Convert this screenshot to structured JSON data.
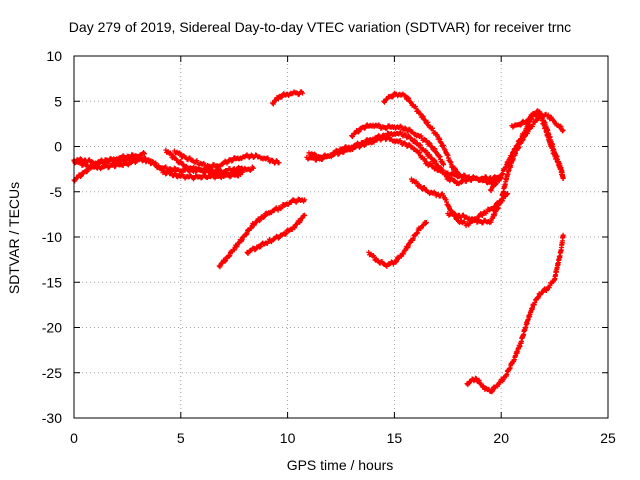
{
  "chart_data": {
    "type": "scatter",
    "title": "Day 279 of 2019, Sidereal Day-to-day VTEC variation (SDTVAR) for receiver trnc",
    "xlabel": "GPS time / hours",
    "ylabel": "SDTVAR / TECUs",
    "xlim": [
      0,
      25
    ],
    "ylim": [
      -30,
      10
    ],
    "xticks": [
      0,
      5,
      10,
      15,
      20,
      25
    ],
    "yticks": [
      -30,
      -25,
      -20,
      -15,
      -10,
      -5,
      0,
      5,
      10
    ],
    "grid": true,
    "marker": "+",
    "color": "#ff0000",
    "series": [
      {
        "name": "s1",
        "points": [
          [
            0,
            -1.5
          ],
          [
            0.5,
            -1.5
          ],
          [
            1,
            -1.8
          ],
          [
            1.5,
            -1.5
          ],
          [
            2,
            -1.7
          ],
          [
            2.5,
            -1.4
          ],
          [
            3,
            -1.3
          ],
          [
            3.5,
            -1.6
          ],
          [
            4,
            -2.3
          ],
          [
            4.5,
            -2.5
          ],
          [
            5,
            -2.6
          ],
          [
            5.5,
            -2.6
          ],
          [
            6,
            -2.5
          ],
          [
            6.5,
            -2.7
          ],
          [
            7,
            -2.7
          ],
          [
            7.5,
            -2.5
          ],
          [
            8,
            -2.4
          ]
        ]
      },
      {
        "name": "s2",
        "points": [
          [
            0,
            -3.7
          ],
          [
            0.5,
            -2.8
          ],
          [
            1,
            -2.0
          ],
          [
            1.5,
            -1.6
          ],
          [
            2,
            -1.3
          ],
          [
            2.5,
            -1.1
          ],
          [
            3,
            -1.0
          ],
          [
            3.3,
            -0.8
          ]
        ]
      },
      {
        "name": "s3",
        "points": [
          [
            0,
            -1.6
          ],
          [
            0.6,
            -2.1
          ],
          [
            1.2,
            -2.3
          ],
          [
            1.8,
            -2.1
          ],
          [
            2.5,
            -1.9
          ],
          [
            3.1,
            -1.4
          ],
          [
            3.6,
            -1.5
          ],
          [
            4.2,
            -2.8
          ],
          [
            4.8,
            -3.2
          ],
          [
            5.5,
            -3.4
          ],
          [
            6.2,
            -3.3
          ],
          [
            6.8,
            -3.3
          ],
          [
            7.4,
            -3.0
          ],
          [
            7.8,
            -2.7
          ],
          [
            8.4,
            -2.4
          ]
        ]
      },
      {
        "name": "s4",
        "points": [
          [
            4.7,
            -0.5
          ],
          [
            5.2,
            -1.2
          ],
          [
            5.8,
            -1.8
          ],
          [
            6.3,
            -2.2
          ],
          [
            6.8,
            -2.1
          ],
          [
            7.3,
            -1.5
          ],
          [
            7.8,
            -1.2
          ],
          [
            8.3,
            -1.0
          ],
          [
            8.8,
            -1.2
          ],
          [
            9.3,
            -1.6
          ],
          [
            9.6,
            -1.8
          ]
        ]
      },
      {
        "name": "s5",
        "points": [
          [
            4.3,
            -0.4
          ],
          [
            4.8,
            -1.5
          ],
          [
            5.3,
            -2.3
          ],
          [
            6.0,
            -2.7
          ],
          [
            6.6,
            -3.0
          ],
          [
            7.2,
            -3.2
          ],
          [
            7.8,
            -3.1
          ]
        ]
      },
      {
        "name": "s6",
        "points": [
          [
            6.8,
            -13.2
          ],
          [
            7.2,
            -12.2
          ],
          [
            7.6,
            -11.0
          ],
          [
            8.0,
            -9.8
          ],
          [
            8.4,
            -8.6
          ],
          [
            8.8,
            -7.8
          ],
          [
            9.2,
            -7.2
          ],
          [
            9.6,
            -6.8
          ],
          [
            10.0,
            -6.3
          ],
          [
            10.3,
            -6.0
          ],
          [
            10.8,
            -5.9
          ]
        ]
      },
      {
        "name": "s7",
        "points": [
          [
            8.1,
            -11.7
          ],
          [
            8.6,
            -11.1
          ],
          [
            9.2,
            -10.4
          ],
          [
            9.8,
            -9.7
          ],
          [
            10.3,
            -8.9
          ],
          [
            10.8,
            -7.6
          ]
        ]
      },
      {
        "name": "s8",
        "points": [
          [
            9.3,
            4.8
          ],
          [
            9.6,
            5.5
          ],
          [
            10.0,
            5.8
          ],
          [
            10.4,
            5.9
          ],
          [
            10.7,
            5.9
          ]
        ]
      },
      {
        "name": "s9",
        "points": [
          [
            11.0,
            -0.7
          ],
          [
            11.5,
            -1.2
          ],
          [
            12.0,
            -1.0
          ],
          [
            12.5,
            -0.6
          ],
          [
            13.0,
            -0.2
          ],
          [
            13.5,
            0.2
          ],
          [
            14.0,
            0.6
          ],
          [
            14.5,
            1.0
          ],
          [
            15.0,
            0.7
          ],
          [
            15.5,
            0.3
          ],
          [
            16.0,
            -0.3
          ],
          [
            16.5,
            -1.8
          ],
          [
            17.0,
            -2.5
          ],
          [
            17.5,
            -3.0
          ],
          [
            18.0,
            -3.2
          ],
          [
            18.5,
            -3.4
          ],
          [
            19.0,
            -3.6
          ],
          [
            19.5,
            -4.0
          ],
          [
            20.0,
            -3.5
          ]
        ]
      },
      {
        "name": "s10",
        "points": [
          [
            10.9,
            -1.2
          ],
          [
            11.5,
            -1.4
          ],
          [
            12.0,
            -0.9
          ],
          [
            12.5,
            -0.3
          ],
          [
            13.0,
            0.0
          ],
          [
            13.5,
            0.4
          ],
          [
            14.0,
            0.9
          ],
          [
            14.5,
            1.2
          ],
          [
            15.0,
            1.5
          ],
          [
            15.5,
            1.3
          ],
          [
            16.0,
            0.5
          ],
          [
            16.5,
            -0.7
          ],
          [
            17.0,
            -2.0
          ],
          [
            17.5,
            -3.5
          ],
          [
            18.0,
            -4.0
          ],
          [
            18.5,
            -3.6
          ],
          [
            19.0,
            -3.5
          ],
          [
            19.5,
            -3.5
          ],
          [
            20.0,
            -3.4
          ]
        ]
      },
      {
        "name": "s11",
        "points": [
          [
            13.0,
            1.2
          ],
          [
            13.5,
            2.1
          ],
          [
            14.0,
            2.4
          ],
          [
            14.5,
            2.1
          ],
          [
            15.0,
            2.2
          ],
          [
            15.5,
            2.0
          ],
          [
            16.0,
            1.4
          ],
          [
            16.5,
            0.6
          ],
          [
            17.0,
            -0.7
          ],
          [
            17.3,
            -2.0
          ]
        ]
      },
      {
        "name": "s12",
        "points": [
          [
            14.5,
            5.0
          ],
          [
            14.8,
            5.5
          ],
          [
            15.1,
            5.8
          ],
          [
            15.5,
            5.6
          ],
          [
            15.8,
            4.8
          ],
          [
            16.2,
            3.6
          ],
          [
            16.6,
            2.4
          ],
          [
            17.0,
            1.2
          ],
          [
            17.4,
            -0.5
          ],
          [
            17.7,
            -2.2
          ],
          [
            18.0,
            -3.0
          ]
        ]
      },
      {
        "name": "s13",
        "points": [
          [
            13.8,
            -11.7
          ],
          [
            14.2,
            -12.6
          ],
          [
            14.6,
            -13.1
          ],
          [
            15.0,
            -12.8
          ],
          [
            15.4,
            -11.8
          ],
          [
            15.8,
            -10.4
          ],
          [
            16.2,
            -9.0
          ],
          [
            16.5,
            -8.4
          ]
        ]
      },
      {
        "name": "s14",
        "points": [
          [
            15.8,
            -3.6
          ],
          [
            16.2,
            -4.4
          ],
          [
            16.6,
            -5.0
          ],
          [
            17.0,
            -5.3
          ],
          [
            17.3,
            -5.4
          ],
          [
            17.6,
            -7.0
          ],
          [
            18.0,
            -8.2
          ],
          [
            18.4,
            -8.6
          ],
          [
            18.8,
            -8.0
          ],
          [
            19.2,
            -7.3
          ],
          [
            19.6,
            -6.8
          ],
          [
            20.0,
            -6.0
          ],
          [
            20.3,
            -5.2
          ]
        ]
      },
      {
        "name": "s15",
        "points": [
          [
            17.5,
            -7.4
          ],
          [
            18.0,
            -7.6
          ],
          [
            18.5,
            -7.9
          ],
          [
            19.0,
            -8.3
          ],
          [
            19.5,
            -8.3
          ],
          [
            20.0,
            -6.0
          ],
          [
            20.3,
            -3.0
          ],
          [
            20.6,
            -1.0
          ],
          [
            21.0,
            0.8
          ],
          [
            21.4,
            2.2
          ],
          [
            21.8,
            3.4
          ],
          [
            22.2,
            3.4
          ],
          [
            22.6,
            2.5
          ],
          [
            22.9,
            1.8
          ]
        ]
      },
      {
        "name": "s16",
        "points": [
          [
            19.5,
            -4.8
          ],
          [
            20.0,
            -3.2
          ],
          [
            20.3,
            -1.8
          ],
          [
            20.7,
            0.0
          ],
          [
            21.1,
            1.6
          ],
          [
            21.5,
            3.6
          ],
          [
            21.8,
            3.9
          ],
          [
            22.1,
            2.2
          ],
          [
            22.5,
            -0.6
          ],
          [
            22.8,
            -2.4
          ],
          [
            22.9,
            -3.5
          ]
        ]
      },
      {
        "name": "s17",
        "points": [
          [
            20.5,
            2.3
          ],
          [
            20.8,
            2.4
          ],
          [
            21.2,
            2.8
          ],
          [
            21.5,
            3.6
          ],
          [
            21.8,
            3.6
          ],
          [
            22.0,
            2.4
          ],
          [
            22.3,
            0.3
          ],
          [
            22.5,
            -1.0
          ],
          [
            22.7,
            -2.0
          ],
          [
            22.9,
            -3.5
          ]
        ]
      },
      {
        "name": "s18",
        "points": [
          [
            18.4,
            -26.2
          ],
          [
            18.8,
            -25.6
          ],
          [
            19.2,
            -26.6
          ],
          [
            19.5,
            -27.1
          ],
          [
            19.8,
            -26.4
          ],
          [
            20.2,
            -25.4
          ],
          [
            20.6,
            -23.5
          ],
          [
            20.9,
            -21.8
          ],
          [
            21.2,
            -19.5
          ],
          [
            21.5,
            -17.5
          ],
          [
            21.8,
            -16.3
          ],
          [
            22.2,
            -15.6
          ],
          [
            22.5,
            -14.6
          ],
          [
            22.8,
            -11.5
          ],
          [
            22.9,
            -9.8
          ]
        ]
      }
    ]
  }
}
